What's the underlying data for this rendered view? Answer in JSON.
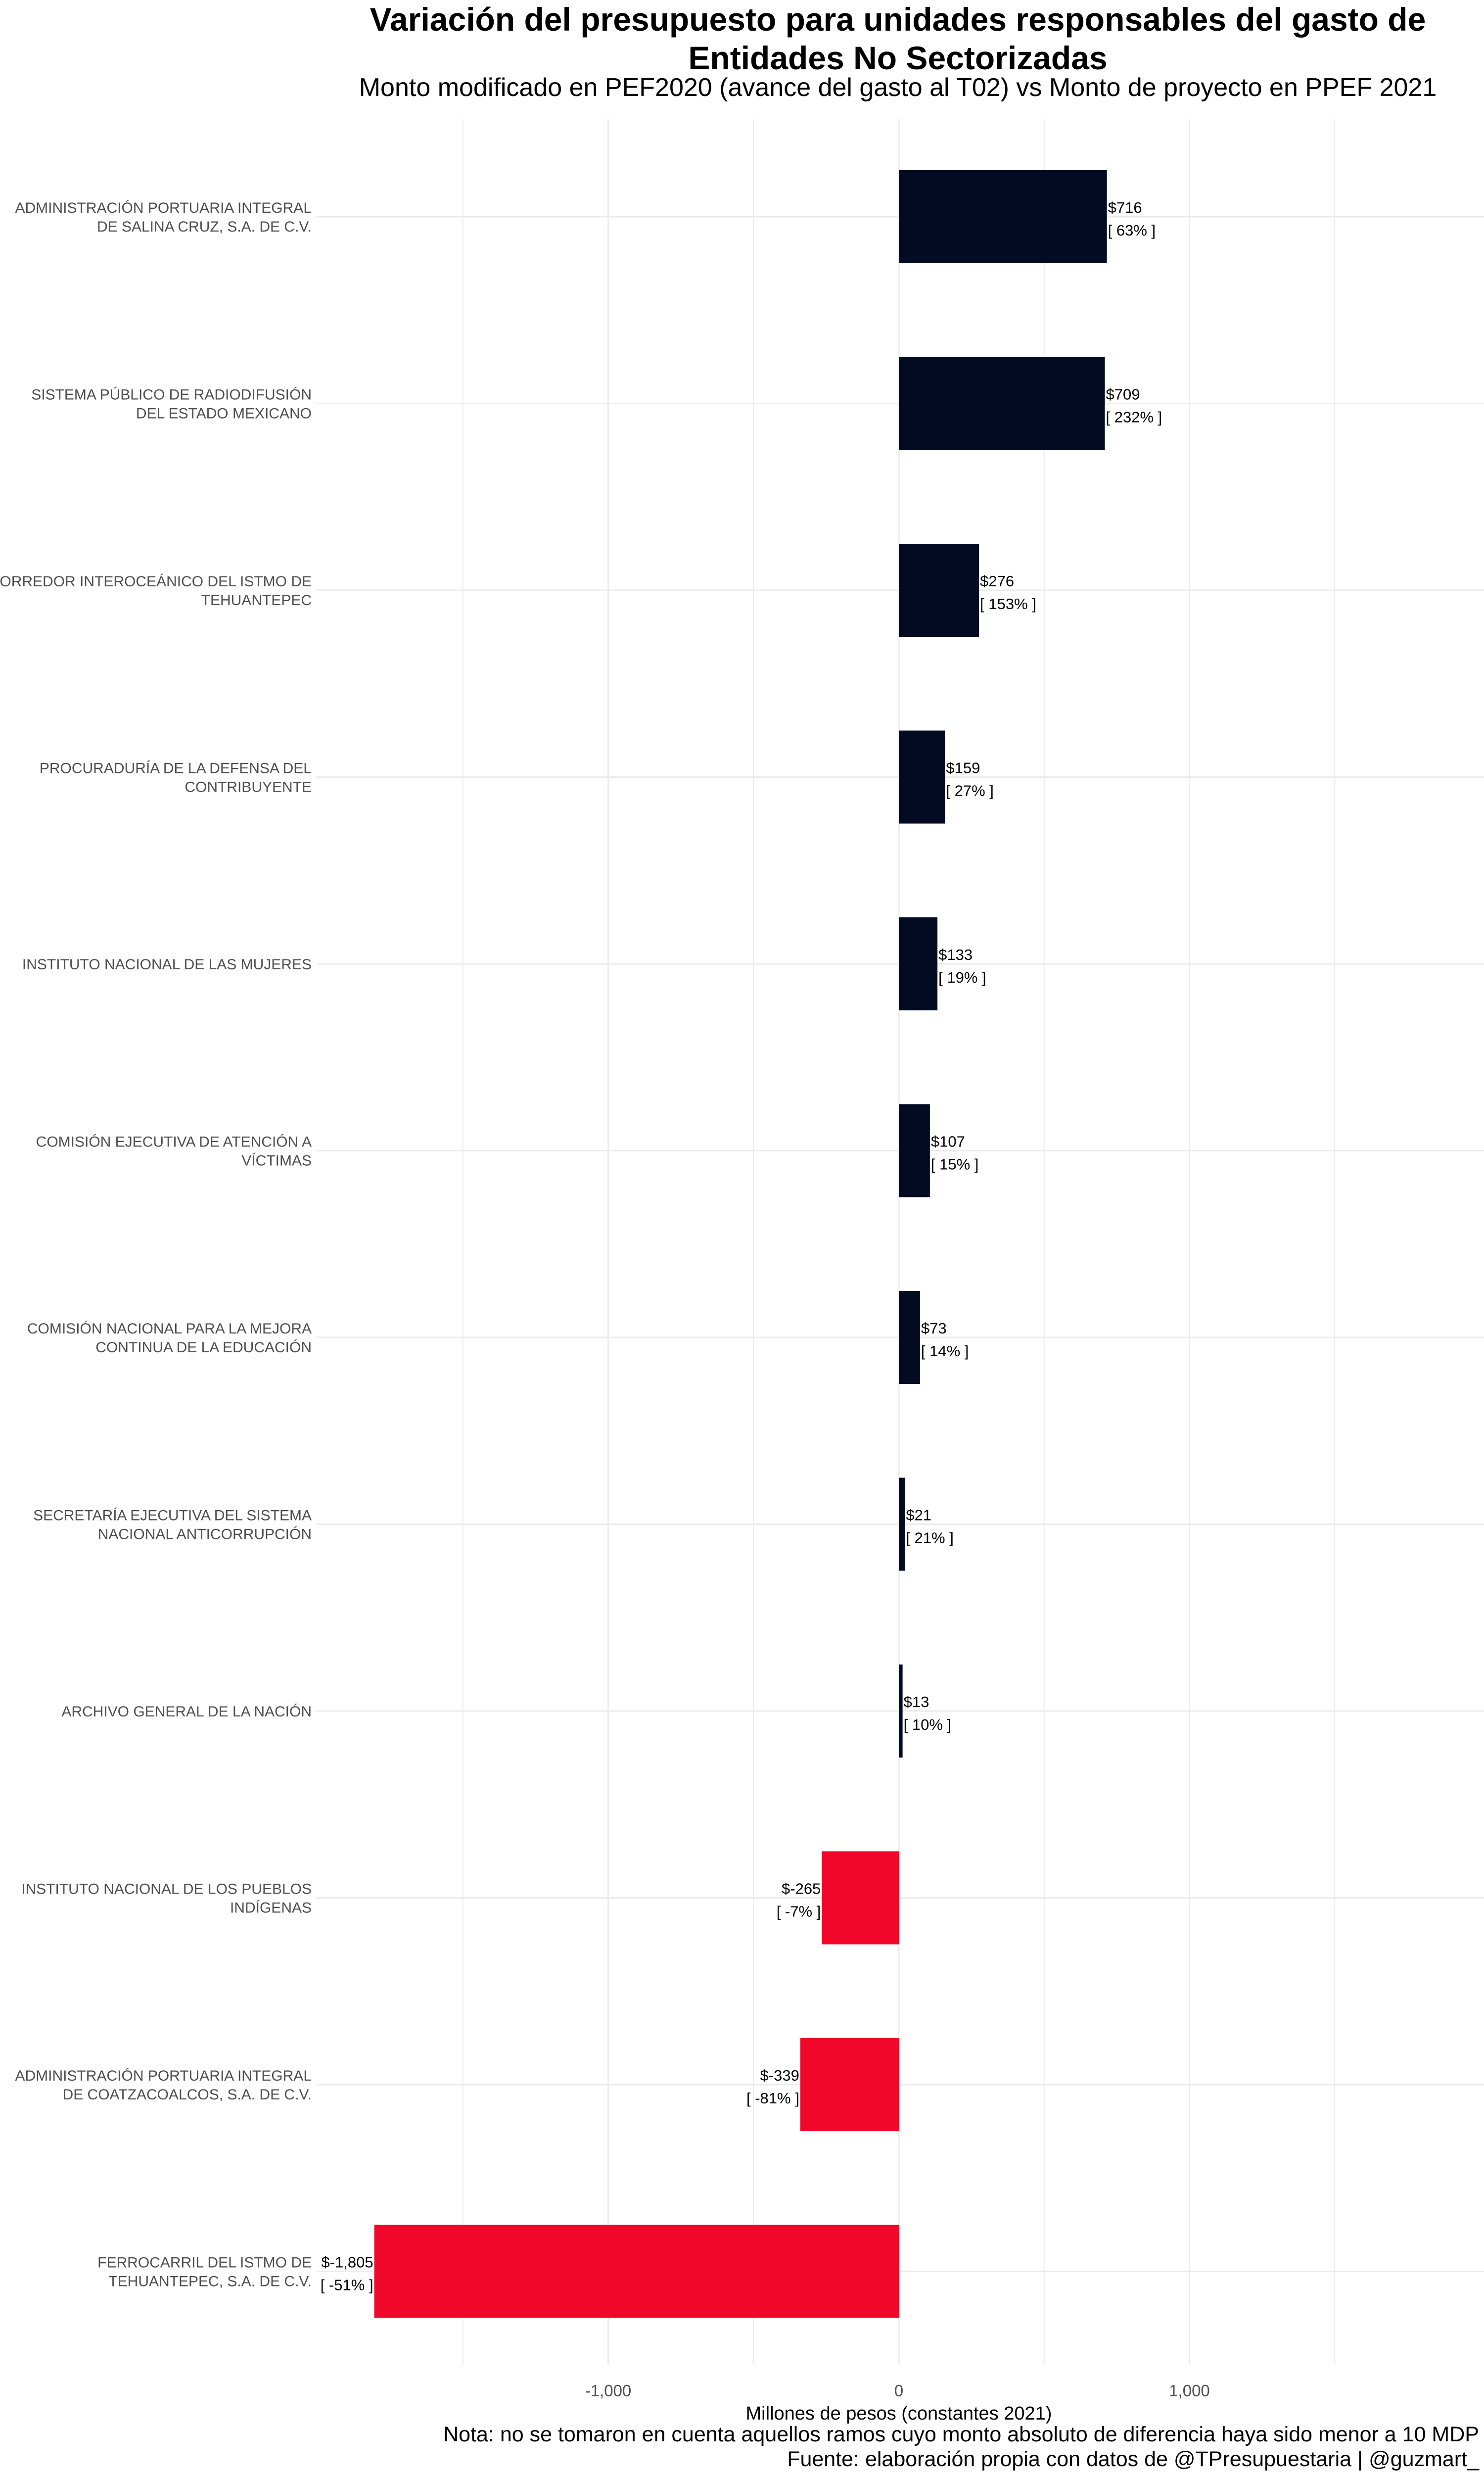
{
  "title": "Variación del presupuesto para unidades responsables del gasto de Entidades No Sectorizadas",
  "title_line1": "Variación del presupuesto para unidades responsables del gasto de",
  "title_line2": "Entidades No Sectorizadas",
  "subtitle": "Monto modificado en PEF2020 (avance del gasto al T02) vs Monto de proyecto en PPEF 2021",
  "note": "Nota: no se tomaron en cuenta aquellos ramos cuyo monto absoluto de diferencia haya sido menor a 10 MDP",
  "source": "Fuente: elaboración propia con datos de @TPresupuestaria | @guzmart_",
  "colors": {
    "positive": "#020b21",
    "negative": "#f0072a",
    "grid": "#ebebeb",
    "text": "#000000",
    "axis_text": "#4d4d4d"
  },
  "chart_data": {
    "type": "bar",
    "orientation": "horizontal",
    "xlabel": "Millones de pesos (constantes 2021)",
    "ylabel": "",
    "xlim": [
      -2000,
      2000
    ],
    "x_ticks": [
      -1000,
      0,
      1000
    ],
    "x_tick_labels": [
      "-1,000",
      "0",
      "1,000"
    ],
    "grid": true,
    "legend": "none",
    "categories": [
      [
        "ADMINISTRACIÓN PORTUARIA INTEGRAL",
        "DE SALINA CRUZ, S.A. DE C.V."
      ],
      [
        "SISTEMA PÚBLICO DE RADIODIFUSIÓN",
        "DEL ESTADO MEXICANO"
      ],
      [
        "CORREDOR INTEROCEÁNICO DEL ISTMO DE",
        "TEHUANTEPEC"
      ],
      [
        "PROCURADURÍA DE LA DEFENSA DEL",
        "CONTRIBUYENTE"
      ],
      [
        "INSTITUTO NACIONAL DE LAS MUJERES"
      ],
      [
        "COMISIÓN EJECUTIVA DE ATENCIÓN A",
        "VÍCTIMAS"
      ],
      [
        "COMISIÓN NACIONAL PARA LA MEJORA",
        "CONTINUA DE LA EDUCACIÓN"
      ],
      [
        "SECRETARÍA EJECUTIVA DEL SISTEMA",
        "NACIONAL ANTICORRUPCIÓN"
      ],
      [
        "ARCHIVO GENERAL DE LA NACIÓN"
      ],
      [
        "INSTITUTO NACIONAL DE LOS PUEBLOS",
        "INDÍGENAS"
      ],
      [
        "ADMINISTRACIÓN PORTUARIA INTEGRAL",
        "DE COATZACOALCOS, S.A. DE C.V."
      ],
      [
        "FERROCARRIL DEL ISTMO DE",
        "TEHUANTEPEC, S.A. DE C.V."
      ]
    ],
    "values": [
      716,
      709,
      276,
      159,
      133,
      107,
      73,
      21,
      13,
      -265,
      -339,
      -1805
    ],
    "value_labels": [
      "$716",
      "$709",
      "$276",
      "$159",
      "$133",
      "$107",
      "$73",
      "$21",
      "$13",
      "$-265",
      "$-339",
      "$-1,805"
    ],
    "percent_labels": [
      "[ 63% ]",
      "[ 232% ]",
      "[ 153% ]",
      "[ 27% ]",
      "[ 19% ]",
      "[ 15% ]",
      "[ 14% ]",
      "[ 21% ]",
      "[ 10% ]",
      "[ -7% ]",
      "[ -81% ]",
      "[ -51% ]"
    ]
  }
}
